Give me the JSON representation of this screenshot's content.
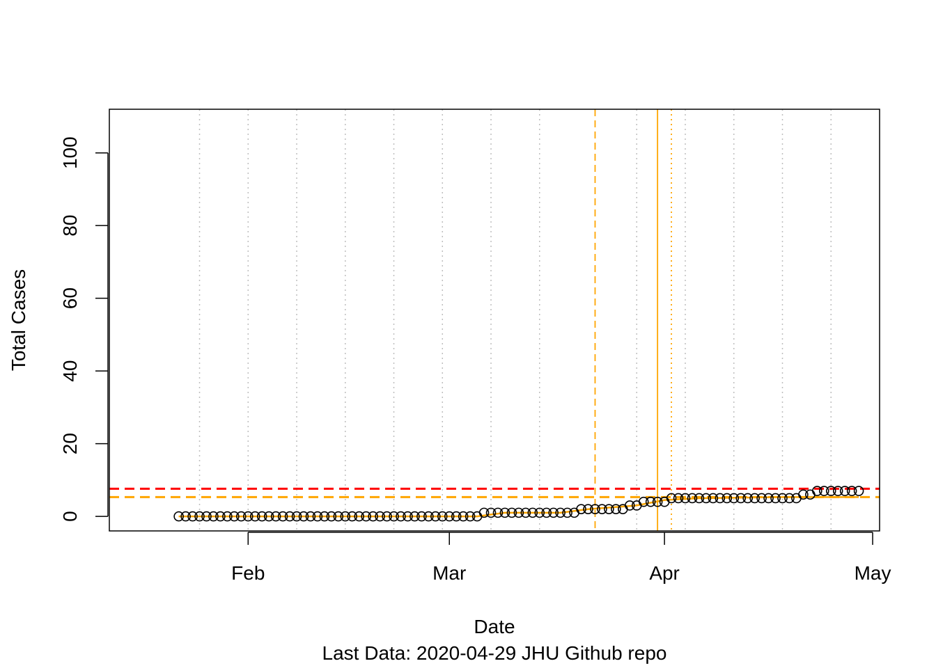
{
  "chart_data": {
    "type": "scatter",
    "title": "",
    "xlabel": "Date",
    "ylabel": "Total Cases",
    "caption": "Last Data: 2020-04-29  JHU Github repo",
    "xlim": [
      "2020-01-12",
      "2020-05-02"
    ],
    "ylim": [
      -4,
      112
    ],
    "x_ticks": [
      {
        "date": "2020-02-01",
        "label": "Feb"
      },
      {
        "date": "2020-03-01",
        "label": "Mar"
      },
      {
        "date": "2020-04-01",
        "label": "Apr"
      },
      {
        "date": "2020-05-01",
        "label": "May"
      }
    ],
    "y_ticks": [
      0,
      20,
      40,
      60,
      80,
      100
    ],
    "grid_dates": [
      "2020-01-25",
      "2020-02-01",
      "2020-02-08",
      "2020-02-15",
      "2020-02-22",
      "2020-02-29",
      "2020-03-07",
      "2020-03-14",
      "2020-03-28",
      "2020-04-04",
      "2020-04-11",
      "2020-04-18",
      "2020-04-25"
    ],
    "reference_lines": [
      {
        "orientation": "horizontal",
        "value": 7.6,
        "color": "#ff0000",
        "style": "dashed"
      },
      {
        "orientation": "horizontal",
        "value": 5.3,
        "color": "#ffa500",
        "style": "dashed"
      },
      {
        "orientation": "vertical",
        "date": "2020-03-22",
        "color": "#ffa500",
        "style": "dashed"
      },
      {
        "orientation": "vertical",
        "date": "2020-03-31",
        "color": "#ffa500",
        "style": "solid"
      },
      {
        "orientation": "vertical",
        "date": "2020-04-02",
        "color": "#ffa500",
        "style": "dotted"
      }
    ],
    "fit_line": {
      "color": "#ffa500",
      "points": [
        {
          "x": "2020-01-22",
          "y": 0
        },
        {
          "x": "2020-03-05",
          "y": 0
        },
        {
          "x": "2020-03-09",
          "y": 1
        },
        {
          "x": "2020-03-17",
          "y": 1
        },
        {
          "x": "2020-03-21",
          "y": 2
        },
        {
          "x": "2020-03-28",
          "y": 3
        },
        {
          "x": "2020-04-01",
          "y": 4.5
        },
        {
          "x": "2020-04-06",
          "y": 5
        },
        {
          "x": "2020-04-18",
          "y": 5.3
        },
        {
          "x": "2020-04-29",
          "y": 5.3
        }
      ]
    },
    "series": [
      {
        "marker": "open-circle",
        "color": "#000000",
        "points": [
          {
            "x": "2020-01-22",
            "y": 0
          },
          {
            "x": "2020-01-23",
            "y": 0
          },
          {
            "x": "2020-01-24",
            "y": 0
          },
          {
            "x": "2020-01-25",
            "y": 0
          },
          {
            "x": "2020-01-26",
            "y": 0
          },
          {
            "x": "2020-01-27",
            "y": 0
          },
          {
            "x": "2020-01-28",
            "y": 0
          },
          {
            "x": "2020-01-29",
            "y": 0
          },
          {
            "x": "2020-01-30",
            "y": 0
          },
          {
            "x": "2020-01-31",
            "y": 0
          },
          {
            "x": "2020-02-01",
            "y": 0
          },
          {
            "x": "2020-02-02",
            "y": 0
          },
          {
            "x": "2020-02-03",
            "y": 0
          },
          {
            "x": "2020-02-04",
            "y": 0
          },
          {
            "x": "2020-02-05",
            "y": 0
          },
          {
            "x": "2020-02-06",
            "y": 0
          },
          {
            "x": "2020-02-07",
            "y": 0
          },
          {
            "x": "2020-02-08",
            "y": 0
          },
          {
            "x": "2020-02-09",
            "y": 0
          },
          {
            "x": "2020-02-10",
            "y": 0
          },
          {
            "x": "2020-02-11",
            "y": 0
          },
          {
            "x": "2020-02-12",
            "y": 0
          },
          {
            "x": "2020-02-13",
            "y": 0
          },
          {
            "x": "2020-02-14",
            "y": 0
          },
          {
            "x": "2020-02-15",
            "y": 0
          },
          {
            "x": "2020-02-16",
            "y": 0
          },
          {
            "x": "2020-02-17",
            "y": 0
          },
          {
            "x": "2020-02-18",
            "y": 0
          },
          {
            "x": "2020-02-19",
            "y": 0
          },
          {
            "x": "2020-02-20",
            "y": 0
          },
          {
            "x": "2020-02-21",
            "y": 0
          },
          {
            "x": "2020-02-22",
            "y": 0
          },
          {
            "x": "2020-02-23",
            "y": 0
          },
          {
            "x": "2020-02-24",
            "y": 0
          },
          {
            "x": "2020-02-25",
            "y": 0
          },
          {
            "x": "2020-02-26",
            "y": 0
          },
          {
            "x": "2020-02-27",
            "y": 0
          },
          {
            "x": "2020-02-28",
            "y": 0
          },
          {
            "x": "2020-02-29",
            "y": 0
          },
          {
            "x": "2020-03-01",
            "y": 0
          },
          {
            "x": "2020-03-02",
            "y": 0
          },
          {
            "x": "2020-03-03",
            "y": 0
          },
          {
            "x": "2020-03-04",
            "y": 0
          },
          {
            "x": "2020-03-05",
            "y": 0
          },
          {
            "x": "2020-03-06",
            "y": 1
          },
          {
            "x": "2020-03-07",
            "y": 1
          },
          {
            "x": "2020-03-08",
            "y": 1
          },
          {
            "x": "2020-03-09",
            "y": 1
          },
          {
            "x": "2020-03-10",
            "y": 1
          },
          {
            "x": "2020-03-11",
            "y": 1
          },
          {
            "x": "2020-03-12",
            "y": 1
          },
          {
            "x": "2020-03-13",
            "y": 1
          },
          {
            "x": "2020-03-14",
            "y": 1
          },
          {
            "x": "2020-03-15",
            "y": 1
          },
          {
            "x": "2020-03-16",
            "y": 1
          },
          {
            "x": "2020-03-17",
            "y": 1
          },
          {
            "x": "2020-03-18",
            "y": 1
          },
          {
            "x": "2020-03-19",
            "y": 1
          },
          {
            "x": "2020-03-20",
            "y": 2
          },
          {
            "x": "2020-03-21",
            "y": 2
          },
          {
            "x": "2020-03-22",
            "y": 2
          },
          {
            "x": "2020-03-23",
            "y": 2
          },
          {
            "x": "2020-03-24",
            "y": 2
          },
          {
            "x": "2020-03-25",
            "y": 2
          },
          {
            "x": "2020-03-26",
            "y": 2
          },
          {
            "x": "2020-03-27",
            "y": 3
          },
          {
            "x": "2020-03-28",
            "y": 3
          },
          {
            "x": "2020-03-29",
            "y": 4
          },
          {
            "x": "2020-03-30",
            "y": 4
          },
          {
            "x": "2020-03-31",
            "y": 4
          },
          {
            "x": "2020-04-01",
            "y": 4
          },
          {
            "x": "2020-04-02",
            "y": 5
          },
          {
            "x": "2020-04-03",
            "y": 5
          },
          {
            "x": "2020-04-04",
            "y": 5
          },
          {
            "x": "2020-04-05",
            "y": 5
          },
          {
            "x": "2020-04-06",
            "y": 5
          },
          {
            "x": "2020-04-07",
            "y": 5
          },
          {
            "x": "2020-04-08",
            "y": 5
          },
          {
            "x": "2020-04-09",
            "y": 5
          },
          {
            "x": "2020-04-10",
            "y": 5
          },
          {
            "x": "2020-04-11",
            "y": 5
          },
          {
            "x": "2020-04-12",
            "y": 5
          },
          {
            "x": "2020-04-13",
            "y": 5
          },
          {
            "x": "2020-04-14",
            "y": 5
          },
          {
            "x": "2020-04-15",
            "y": 5
          },
          {
            "x": "2020-04-16",
            "y": 5
          },
          {
            "x": "2020-04-17",
            "y": 5
          },
          {
            "x": "2020-04-18",
            "y": 5
          },
          {
            "x": "2020-04-19",
            "y": 5
          },
          {
            "x": "2020-04-20",
            "y": 5
          },
          {
            "x": "2020-04-21",
            "y": 6
          },
          {
            "x": "2020-04-22",
            "y": 6
          },
          {
            "x": "2020-04-23",
            "y": 7
          },
          {
            "x": "2020-04-24",
            "y": 7
          },
          {
            "x": "2020-04-25",
            "y": 7
          },
          {
            "x": "2020-04-26",
            "y": 7
          },
          {
            "x": "2020-04-27",
            "y": 7
          },
          {
            "x": "2020-04-28",
            "y": 7
          },
          {
            "x": "2020-04-29",
            "y": 7
          }
        ]
      }
    ]
  }
}
